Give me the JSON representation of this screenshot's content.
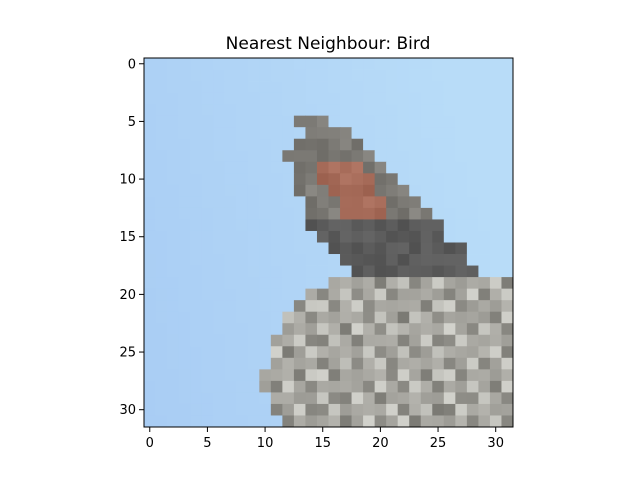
{
  "chart_data": {
    "type": "image",
    "title": "Nearest Neighbour: Bird",
    "image_shape": [
      32,
      32
    ],
    "xlim": [
      -0.5,
      31.5
    ],
    "ylim": [
      31.5,
      -0.5
    ],
    "xticks": [
      0,
      5,
      10,
      15,
      20,
      25,
      30
    ],
    "yticks": [
      0,
      5,
      10,
      15,
      20,
      25,
      30
    ],
    "xlabel": "",
    "ylabel": "",
    "grid": false,
    "content": "pixelated photo of a bird perched on a gray rock against a light blue sky",
    "colors": {
      "sky": "#b8dcf8",
      "sky_dark": "#a9cdf4",
      "bird_dark": "#5a5a5a",
      "bird_mid": "#7d7b76",
      "bird_breast": "#a56a58",
      "rock_light": "#c8c8c2",
      "rock_mid": "#a9a8a2",
      "rock_dark": "#85847e"
    }
  }
}
